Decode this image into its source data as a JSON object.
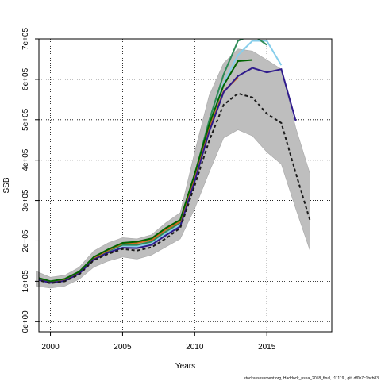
{
  "chart_data": {
    "type": "line",
    "xlabel": "Years",
    "ylabel": "SSB",
    "xlim": [
      1999.2,
      2019.5
    ],
    "ylim": [
      -25000,
      700000
    ],
    "x_ticks": [
      2000,
      2005,
      2010,
      2015
    ],
    "y_ticks": [
      0,
      100000,
      200000,
      300000,
      400000,
      500000,
      600000,
      700000
    ],
    "y_tick_labels": [
      "0e+00",
      "1e+05",
      "2e+05",
      "3e+05",
      "4e+05",
      "5e+05",
      "6e+05",
      "7e+05"
    ],
    "grid": true,
    "grid_style": "dotted",
    "footer": "stockassessment.org, Haddock_nsea_2018_final, r11119 , git: df0b7c1bcb83",
    "confidence_band": {
      "x": [
        1999,
        2000,
        2001,
        2002,
        2003,
        2004,
        2005,
        2006,
        2007,
        2008,
        2009,
        2010,
        2011,
        2012,
        2013,
        2014,
        2015,
        2016,
        2017,
        2018
      ],
      "lower": [
        88000,
        83000,
        88000,
        105000,
        135000,
        150000,
        160000,
        155000,
        165000,
        185000,
        205000,
        280000,
        370000,
        455000,
        475000,
        460000,
        420000,
        390000,
        280000,
        175000
      ],
      "upper": [
        125000,
        110000,
        115000,
        135000,
        175000,
        195000,
        208000,
        205000,
        215000,
        245000,
        270000,
        420000,
        560000,
        640000,
        675000,
        670000,
        648000,
        625000,
        480000,
        365000
      ]
    },
    "series": [
      {
        "color": "#87CEEB",
        "x": [
          1999,
          2000,
          2001,
          2002,
          2003,
          2004,
          2005,
          2006,
          2007,
          2008,
          2009,
          2010,
          2011,
          2012,
          2013,
          2014,
          2015,
          2016
        ],
        "values": [
          107000,
          97000,
          103000,
          121000,
          156000,
          173000,
          188000,
          186000,
          194000,
          218000,
          239000,
          355000,
          485000,
          590000,
          660000,
          695000,
          695000,
          635000
        ]
      },
      {
        "color": "#2E8B57",
        "x": [
          1999,
          2000,
          2001,
          2002,
          2003,
          2004,
          2005,
          2006,
          2007,
          2008,
          2009,
          2010,
          2011,
          2012,
          2013,
          2014,
          2015
        ],
        "values": [
          108000,
          98000,
          104000,
          122000,
          157000,
          175000,
          190000,
          190000,
          198000,
          223000,
          245000,
          363000,
          498000,
          612000,
          695000,
          710000,
          685000
        ]
      },
      {
        "color": "#D2691E",
        "x": [
          1999,
          2000,
          2001,
          2002,
          2003,
          2004,
          2005,
          2006,
          2007,
          2008,
          2009,
          2010,
          2011,
          2012,
          2013
        ],
        "values": [
          109000,
          99000,
          105000,
          123000,
          158000,
          177000,
          193000,
          195000,
          202000,
          228000,
          248000,
          360000,
          478000,
          570000,
          605000
        ]
      },
      {
        "color": "#006400",
        "x": [
          1999,
          2000,
          2001,
          2002,
          2003,
          2004,
          2005,
          2006,
          2007,
          2008,
          2009,
          2010,
          2011,
          2012,
          2013,
          2014
        ],
        "values": [
          110000,
          100000,
          106000,
          124000,
          160000,
          179000,
          195000,
          198000,
          206000,
          232000,
          252000,
          366000,
          488000,
          585000,
          645000,
          648000
        ]
      },
      {
        "color": "#2F1B8C",
        "x": [
          1999,
          2000,
          2001,
          2002,
          2003,
          2004,
          2005,
          2006,
          2007,
          2008,
          2009,
          2010,
          2011,
          2012,
          2013,
          2014,
          2015,
          2016,
          2017
        ],
        "values": [
          105000,
          96000,
          101000,
          119000,
          154000,
          171000,
          183000,
          182000,
          190000,
          214000,
          236000,
          348000,
          470000,
          568000,
          608000,
          628000,
          617000,
          625000,
          497000
        ]
      },
      {
        "color": "#1a1a1a",
        "dashed": true,
        "x": [
          1999,
          2000,
          2001,
          2002,
          2003,
          2004,
          2005,
          2006,
          2007,
          2008,
          2009,
          2010,
          2011,
          2012,
          2013,
          2014,
          2015,
          2016,
          2017,
          2018
        ],
        "values": [
          104000,
          95000,
          100000,
          117000,
          152000,
          168000,
          180000,
          176000,
          184000,
          206000,
          232000,
          337000,
          448000,
          537000,
          565000,
          555000,
          515000,
          492000,
          368000,
          250000
        ]
      }
    ]
  }
}
